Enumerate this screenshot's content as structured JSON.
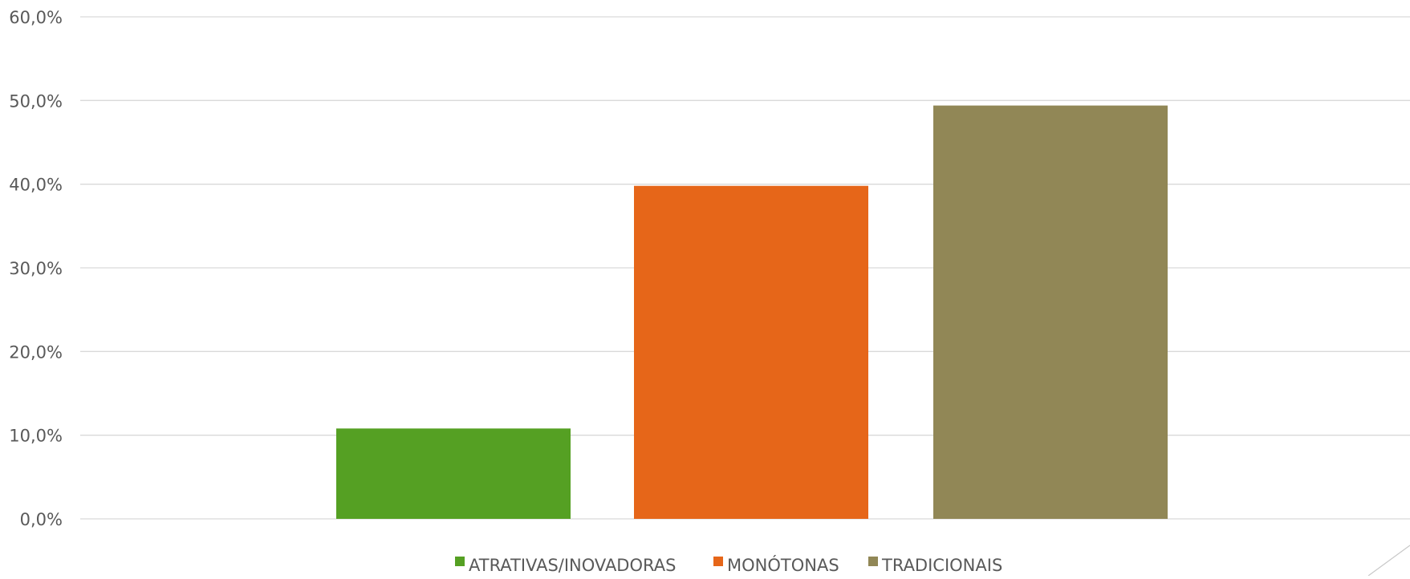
{
  "chart_data": {
    "type": "bar",
    "series": [
      {
        "name": "ATRATIVAS/INOVADORAS",
        "value": 10.8,
        "color": "#55a023"
      },
      {
        "name": "MONÓTONAS",
        "value": 39.8,
        "color": "#e66619"
      },
      {
        "name": "TRADICIONAIS",
        "value": 49.4,
        "color": "#918756"
      }
    ],
    "ylim": [
      0,
      60
    ],
    "yticks": [
      "0,0%",
      "10,0%",
      "20,0%",
      "30,0%",
      "40,0%",
      "50,0%",
      "60,0%"
    ],
    "grid": true,
    "legend_position": "bottom",
    "title": "",
    "xlabel": "",
    "ylabel": ""
  }
}
